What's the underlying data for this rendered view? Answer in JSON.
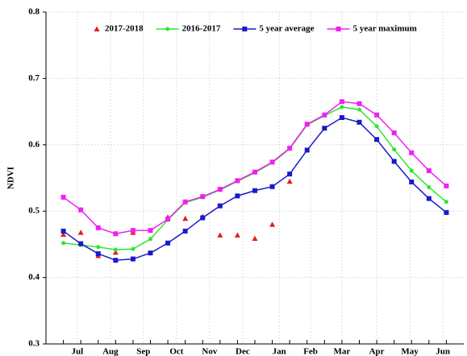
{
  "chart_data": {
    "type": "line",
    "y_label": "NDVI",
    "x": [
      0,
      1,
      2,
      3,
      4,
      5,
      6,
      7,
      8,
      9,
      10,
      11,
      12,
      13,
      14,
      15,
      16,
      17,
      18,
      19,
      20,
      21,
      22
    ],
    "xlim": [
      -1,
      23
    ],
    "xticks": [
      {
        "value": 0.8,
        "label": "Jul"
      },
      {
        "value": 2.7,
        "label": "Aug"
      },
      {
        "value": 4.6,
        "label": "Sep"
      },
      {
        "value": 6.5,
        "label": "Oct"
      },
      {
        "value": 8.4,
        "label": "Nov"
      },
      {
        "value": 10.3,
        "label": "Dec"
      },
      {
        "value": 12.4,
        "label": "Jan"
      },
      {
        "value": 14.2,
        "label": "Feb"
      },
      {
        "value": 16,
        "label": "Mar"
      },
      {
        "value": 18,
        "label": "Apr"
      },
      {
        "value": 19.9,
        "label": "May"
      },
      {
        "value": 21.8,
        "label": "Jun"
      }
    ],
    "ylim": [
      0.3,
      0.8
    ],
    "yticks": [
      0.3,
      0.4,
      0.5,
      0.6,
      0.7,
      0.8
    ],
    "grid": true,
    "legend": "top",
    "series": [
      {
        "name": "2017-2018",
        "color": "#e0201c",
        "marker": "triangle",
        "line": false,
        "values": [
          0.465,
          0.468,
          0.433,
          0.438,
          0.468,
          null,
          0.491,
          0.489,
          0.492,
          0.464,
          0.464,
          0.459,
          0.48,
          0.545,
          null,
          null,
          null,
          null,
          null,
          null,
          null,
          null,
          null
        ]
      },
      {
        "name": "2016-2017",
        "color": "#2ee62e",
        "marker": "circle",
        "line": true,
        "values": [
          0.452,
          0.449,
          0.446,
          0.442,
          0.443,
          0.458,
          0.487,
          0.513,
          0.521,
          0.532,
          0.545,
          0.558,
          0.573,
          0.594,
          0.63,
          0.644,
          0.657,
          0.653,
          0.628,
          0.593,
          0.561,
          0.536,
          0.514
        ]
      },
      {
        "name": "5 year average",
        "color": "#1a1ac8",
        "marker": "square",
        "line": true,
        "values": [
          0.47,
          0.451,
          0.436,
          0.426,
          0.428,
          0.437,
          0.452,
          0.47,
          0.49,
          0.508,
          0.523,
          0.531,
          0.537,
          0.556,
          0.592,
          0.625,
          0.641,
          0.634,
          0.608,
          0.575,
          0.544,
          0.519,
          0.498
        ]
      },
      {
        "name": "5 year maximum",
        "color": "#f020f0",
        "marker": "square",
        "line": true,
        "values": [
          0.521,
          0.502,
          0.475,
          0.466,
          0.471,
          0.471,
          0.488,
          0.514,
          0.522,
          0.533,
          0.546,
          0.559,
          0.574,
          0.595,
          0.631,
          0.645,
          0.665,
          0.662,
          0.645,
          0.618,
          0.588,
          0.561,
          0.538
        ]
      }
    ]
  }
}
